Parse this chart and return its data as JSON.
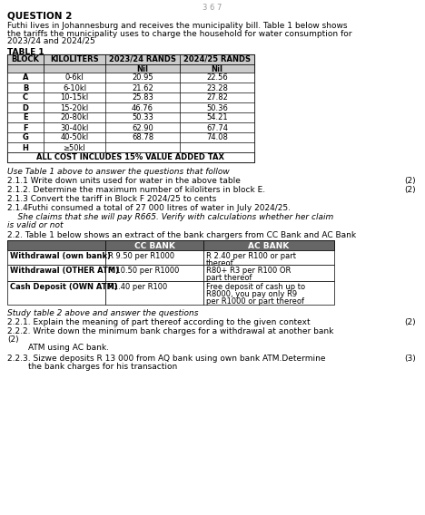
{
  "title": "QUESTION 2",
  "intro_text": "Futhi lives in Johannesburg and receives the municipality bill. Table 1 below shows\nthe tariffs the municipality uses to charge the household for water consumption for\n2023/24 and 2024/25",
  "table1_label": "TABLE 1",
  "table1_headers": [
    "BLOCK",
    "KILOLITERS",
    "2023/24 RANDS",
    "2024/25 RANDS"
  ],
  "table1_subheaders": [
    "",
    "",
    "Nil",
    "Nil"
  ],
  "table1_rows": [
    [
      "A",
      "0-6kl",
      "20.95",
      "22.56"
    ],
    [
      "B",
      "6-10kl",
      "21.62",
      "23.28"
    ],
    [
      "C",
      "10-15kl",
      "25.83",
      "27.82"
    ],
    [
      "D",
      "15-20kl",
      "46.76",
      "50.36"
    ],
    [
      "E",
      "20-80kl",
      "50.33",
      "54.21"
    ],
    [
      "F",
      "30-40kl",
      "62.90",
      "67.74"
    ],
    [
      "G",
      "40-50kl",
      "68.78",
      "74.08"
    ],
    [
      "H",
      "≥50kl",
      "",
      ""
    ]
  ],
  "table1_footer": "ALL COST INCLUDES 15% VALUE ADDED TAX",
  "italic_text": "Use Table 1 above to answer the questions that follow",
  "q211": "2.1.1 Write down units used for water in the above table",
  "q211_marks": "(2)",
  "q212": "2.1.2. Determine the maximum number of kiloliters in block E.",
  "q212_marks": "(2)",
  "q213": "2.1.3 Convert the tariff in Block F 2024/25 to cents",
  "q214": "2.1.4Futhi consumed a total of 27 000 litres of water in July 2024/25.",
  "q214b_1": "    She claims that she will pay R665. Verify with calculations whether her claim",
  "q214b_2": "is valid or not",
  "q22_intro": "2.2. Table 1 below shows an extract of the bank chargers from CC Bank and AC Bank",
  "table2_col0_header": "",
  "table2_cc_header": "CC BANK",
  "table2_ac_header": "AC BANK",
  "table2_rows": [
    [
      "Withdrawal (own bank)",
      "R 9.50 per R1000",
      "R 2.40 per R100 or part\nthereof"
    ],
    [
      "Withdrawal (OTHER ATM)",
      "R 10.50 per R1000",
      "R80+ R3 per R100 OR\npart thereof"
    ],
    [
      "Cash Deposit (OWN ATM)",
      "R1.40 per R100",
      "Free deposit of cash up to\nR8000, you pay only R9\nper R1000 or part thereof"
    ]
  ],
  "italic_text2": "Study table 2 above and answer the questions",
  "q221": "2.2.1. Explain the meaning of part thereof according to the given context",
  "q221_marks": "(2)",
  "q222_1": "2.2.2. Write down the minimum bank charges for a withdrawal at another bank",
  "q222_2": "(2)",
  "q222_3": "        ATM using AC bank.",
  "q223": "2.2.3. Sizwe deposits R 13 000 from AQ bank using own bank ATM.Determine",
  "q223_marks": "(3)",
  "q223b": "        the bank charges for his transaction",
  "bg_color": "#ffffff"
}
